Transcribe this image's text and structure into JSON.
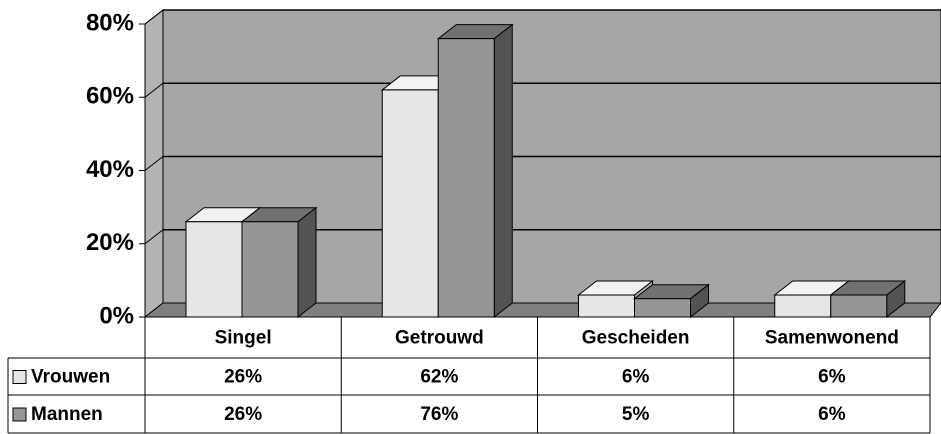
{
  "chart_data": {
    "type": "bar3d",
    "categories": [
      "Singel",
      "Getrouwd",
      "Gescheiden",
      "Samenwonend"
    ],
    "series": [
      {
        "name": "Vrouwen",
        "color": "#e6e6e6",
        "values": [
          26,
          62,
          6,
          6
        ],
        "value_labels": [
          "26%",
          "62%",
          "6%",
          "6%"
        ]
      },
      {
        "name": "Mannen",
        "color": "#969696",
        "values": [
          26,
          76,
          5,
          6
        ],
        "value_labels": [
          "26%",
          "76%",
          "5%",
          "6%"
        ]
      }
    ],
    "ylim": [
      0,
      80
    ],
    "yticks": [
      {
        "value": 0,
        "label": "0%"
      },
      {
        "value": 20,
        "label": "20%"
      },
      {
        "value": 40,
        "label": "40%"
      },
      {
        "value": 60,
        "label": "60%"
      },
      {
        "value": 80,
        "label": "80%"
      }
    ],
    "grid": true
  }
}
